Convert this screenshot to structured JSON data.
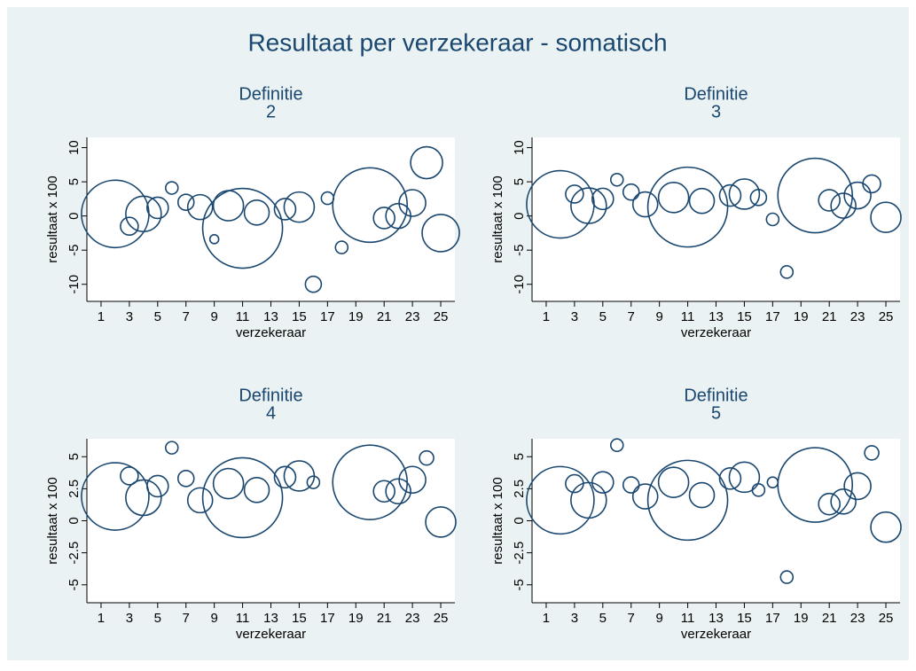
{
  "title": "Resultaat per verzekeraar - somatisch",
  "chart_data": [
    {
      "type": "scatter",
      "title": [
        "Definitie",
        "2"
      ],
      "xlabel": "verzekeraar",
      "ylabel": "resultaat x 100",
      "color": "#1a476f",
      "xlim": [
        0,
        26
      ],
      "xticks": [
        1,
        3,
        5,
        7,
        9,
        11,
        13,
        15,
        17,
        19,
        21,
        23,
        25
      ],
      "ylim": [
        -12.5,
        11.5
      ],
      "yticks": [
        10,
        5,
        0,
        -5,
        -10
      ],
      "x": [
        2,
        3,
        4,
        5,
        6,
        7,
        8,
        9,
        10,
        11,
        12,
        14,
        15,
        16,
        17,
        18,
        20,
        21,
        22,
        23,
        24,
        25
      ],
      "values": [
        0.3,
        -1.5,
        0.3,
        1.2,
        4.1,
        2.0,
        1.3,
        -3.4,
        1.5,
        -1.8,
        0.5,
        1.0,
        1.3,
        -10,
        2.6,
        -4.6,
        1.6,
        -0.3,
        0.0,
        1.9,
        7.8,
        -2.5
      ],
      "sizes": [
        1444,
        100,
        400,
        144,
        49,
        81,
        196,
        25,
        289,
        2025,
        196,
        144,
        289,
        81,
        49,
        49,
        1764,
        144,
        196,
        225,
        324,
        441
      ]
    },
    {
      "type": "scatter",
      "title": [
        "Definitie",
        "3"
      ],
      "xlabel": "verzekeraar",
      "ylabel": "resultaat x 100",
      "color": "#1a476f",
      "xlim": [
        0,
        26
      ],
      "xticks": [
        1,
        3,
        5,
        7,
        9,
        11,
        13,
        15,
        17,
        19,
        21,
        23,
        25
      ],
      "ylim": [
        -12.5,
        11.5
      ],
      "yticks": [
        10,
        5,
        0,
        -5,
        -10
      ],
      "x": [
        2,
        3,
        4,
        5,
        6,
        7,
        8,
        10,
        11,
        12,
        14,
        15,
        16,
        17,
        18,
        20,
        21,
        22,
        23,
        24,
        25
      ],
      "values": [
        1.7,
        3.2,
        1.5,
        2.5,
        5.3,
        3.5,
        1.7,
        2.7,
        1.3,
        2.2,
        3.0,
        3.2,
        2.7,
        -0.5,
        -8.2,
        3.0,
        2.3,
        1.5,
        3.0,
        4.7,
        -0.2
      ],
      "sizes": [
        1444,
        100,
        400,
        144,
        49,
        81,
        196,
        289,
        2025,
        196,
        144,
        289,
        81,
        49,
        49,
        1764,
        144,
        196,
        225,
        100,
        289
      ]
    },
    {
      "type": "scatter",
      "title": [
        "Definitie",
        "4"
      ],
      "xlabel": "verzekeraar",
      "ylabel": "resultaat x 100",
      "color": "#1a476f",
      "xlim": [
        0,
        26
      ],
      "xticks": [
        1,
        3,
        5,
        7,
        9,
        11,
        13,
        15,
        17,
        19,
        21,
        23,
        25
      ],
      "ylim": [
        -6.4,
        6.4
      ],
      "yticks": [
        5,
        2.5,
        0,
        -2.5,
        -5
      ],
      "x": [
        2,
        3,
        4,
        5,
        6,
        7,
        8,
        10,
        11,
        12,
        14,
        15,
        16,
        20,
        21,
        22,
        23,
        24,
        25
      ],
      "values": [
        1.9,
        3.5,
        1.8,
        2.7,
        5.7,
        3.3,
        1.6,
        2.9,
        1.8,
        2.4,
        3.4,
        3.5,
        3.0,
        3.0,
        2.3,
        2.3,
        3.2,
        4.9,
        -0.1
      ],
      "sizes": [
        1444,
        100,
        400,
        144,
        49,
        81,
        196,
        289,
        2025,
        196,
        144,
        289,
        49,
        1764,
        144,
        196,
        225,
        64,
        289
      ]
    },
    {
      "type": "scatter",
      "title": [
        "Definitie",
        "5"
      ],
      "xlabel": "verzekeraar",
      "ylabel": "resultaat x 100",
      "color": "#1a476f",
      "xlim": [
        0,
        26
      ],
      "xticks": [
        1,
        3,
        5,
        7,
        9,
        11,
        13,
        15,
        17,
        19,
        21,
        23,
        25
      ],
      "ylim": [
        -6.4,
        6.4
      ],
      "yticks": [
        5,
        2.5,
        0,
        -2.5,
        -5
      ],
      "x": [
        2,
        3,
        4,
        5,
        6,
        7,
        8,
        10,
        11,
        12,
        14,
        15,
        16,
        17,
        18,
        20,
        21,
        22,
        23,
        24,
        25
      ],
      "values": [
        1.6,
        2.9,
        1.6,
        3.0,
        5.9,
        2.8,
        1.9,
        3.0,
        1.6,
        2.0,
        3.3,
        3.4,
        2.4,
        3.0,
        -4.4,
        2.8,
        1.3,
        1.5,
        2.7,
        5.3,
        -0.5
      ],
      "sizes": [
        1444,
        100,
        400,
        144,
        49,
        81,
        196,
        289,
        2025,
        196,
        144,
        289,
        49,
        36,
        49,
        1764,
        144,
        196,
        225,
        64,
        289
      ]
    }
  ]
}
